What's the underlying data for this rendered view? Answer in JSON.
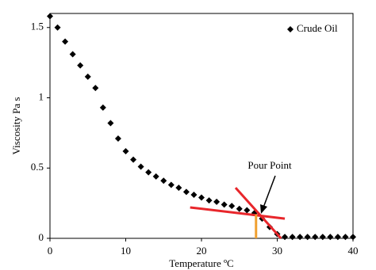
{
  "chart_data": {
    "type": "scatter",
    "xlabel": "Temperature ºC",
    "ylabel": "Viscosity Pa s",
    "annotation": "Pour Point",
    "x": [
      0,
      1,
      2,
      3,
      4,
      5,
      6,
      7,
      8,
      9,
      10,
      11,
      12,
      13,
      14,
      15,
      16,
      17,
      18,
      19,
      20,
      21,
      22,
      23,
      24,
      25,
      26,
      27,
      28,
      29,
      30,
      31,
      32,
      33,
      34,
      35,
      36,
      37,
      38,
      39,
      40
    ],
    "series": [
      {
        "name": "Crude Oil",
        "color": "#000000",
        "values": [
          1.58,
          1.5,
          1.4,
          1.31,
          1.23,
          1.15,
          1.07,
          0.93,
          0.82,
          0.71,
          0.62,
          0.56,
          0.51,
          0.47,
          0.44,
          0.41,
          0.38,
          0.36,
          0.33,
          0.31,
          0.29,
          0.27,
          0.26,
          0.24,
          0.23,
          0.21,
          0.2,
          0.18,
          0.14,
          0.08,
          0.03,
          0.01,
          0.01,
          0.01,
          0.01,
          0.01,
          0.01,
          0.01,
          0.01,
          0.01,
          0.01
        ]
      }
    ],
    "lines": [
      {
        "x": [
          18.5,
          31
        ],
        "y": [
          0.22,
          0.14
        ],
        "color": "#e8262b"
      },
      {
        "x": [
          24.5,
          30.5
        ],
        "y": [
          0.36,
          0.0
        ],
        "color": "#e8262b"
      },
      {
        "x": [
          27.2,
          27.2
        ],
        "y": [
          0,
          0.17
        ],
        "color": "#f0a030"
      }
    ],
    "xlim": [
      0,
      40
    ],
    "xticks": [
      0,
      10,
      20,
      30,
      40
    ],
    "ylim": [
      0,
      1.6
    ],
    "yticks": [
      0,
      0.5,
      1,
      1.5
    ],
    "legend": "top-right"
  }
}
